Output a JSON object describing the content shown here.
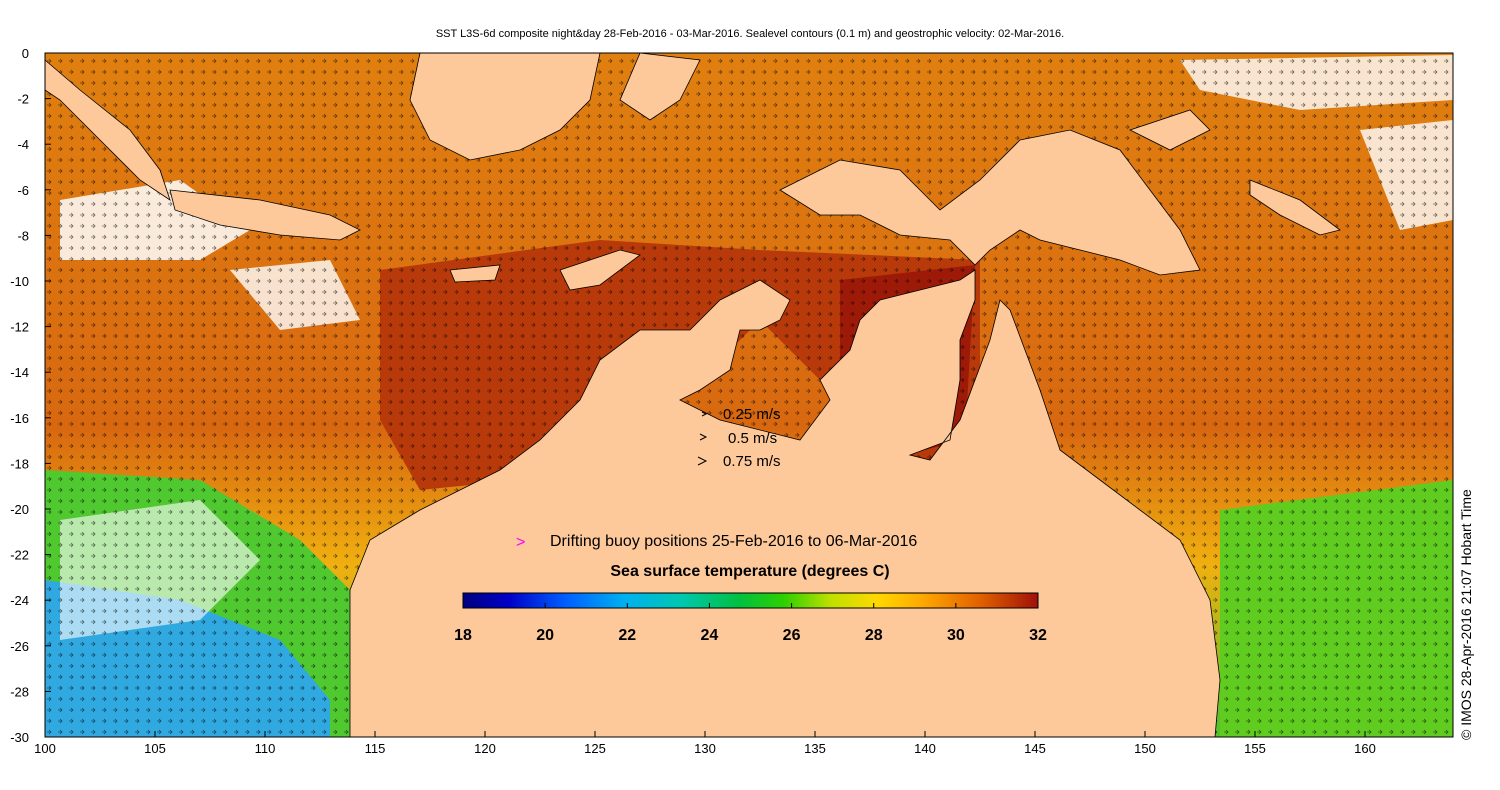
{
  "title": "SST L3S-6d composite night&day 28-Feb-2016 - 03-Mar-2016. Sealevel contours (0.1 m) and geostrophic velocity: 02-Mar-2016.",
  "credit": "© IMOS 28-Apr-2016 21:07 Hobart Time",
  "axes": {
    "x_ticks": [
      "100",
      "105",
      "110",
      "115",
      "120",
      "125",
      "130",
      "135",
      "140",
      "145",
      "150",
      "155",
      "160"
    ],
    "y_ticks": [
      "0",
      "-2",
      "-4",
      "-6",
      "-8",
      "-10",
      "-12",
      "-14",
      "-16",
      "-18",
      "-20",
      "-22",
      "-24",
      "-26",
      "-28",
      "-30"
    ],
    "lon_range": [
      100,
      164
    ],
    "lat_range": [
      -30,
      0
    ]
  },
  "velocity_legend": [
    {
      "label": "0.25 m/s",
      "speed": 0.25
    },
    {
      "label": "0.5 m/s",
      "speed": 0.5
    },
    {
      "label": "0.75 m/s",
      "speed": 0.75
    }
  ],
  "buoy_legend": {
    "symbol": ">",
    "label": "Drifting buoy positions 25-Feb-2016 to 06-Mar-2016",
    "color": "#ff00ff"
  },
  "colorbar": {
    "title": "Sea surface temperature (degrees C)",
    "range": [
      18,
      32
    ],
    "tick_labels": [
      "18",
      "20",
      "22",
      "24",
      "26",
      "28",
      "30",
      "32"
    ],
    "colors": [
      "#000080",
      "#0000c8",
      "#0050ff",
      "#00a0ff",
      "#00d8e0",
      "#00c070",
      "#00c800",
      "#60d800",
      "#d8e800",
      "#ffd000",
      "#ffa000",
      "#e07000",
      "#c84000",
      "#a01000"
    ]
  },
  "colors": {
    "land": "#fdc89a",
    "warm": "#c0400a",
    "hot": "#a01808",
    "mid": "#e07810",
    "cool": "#40c020",
    "cold": "#30a0e0"
  }
}
